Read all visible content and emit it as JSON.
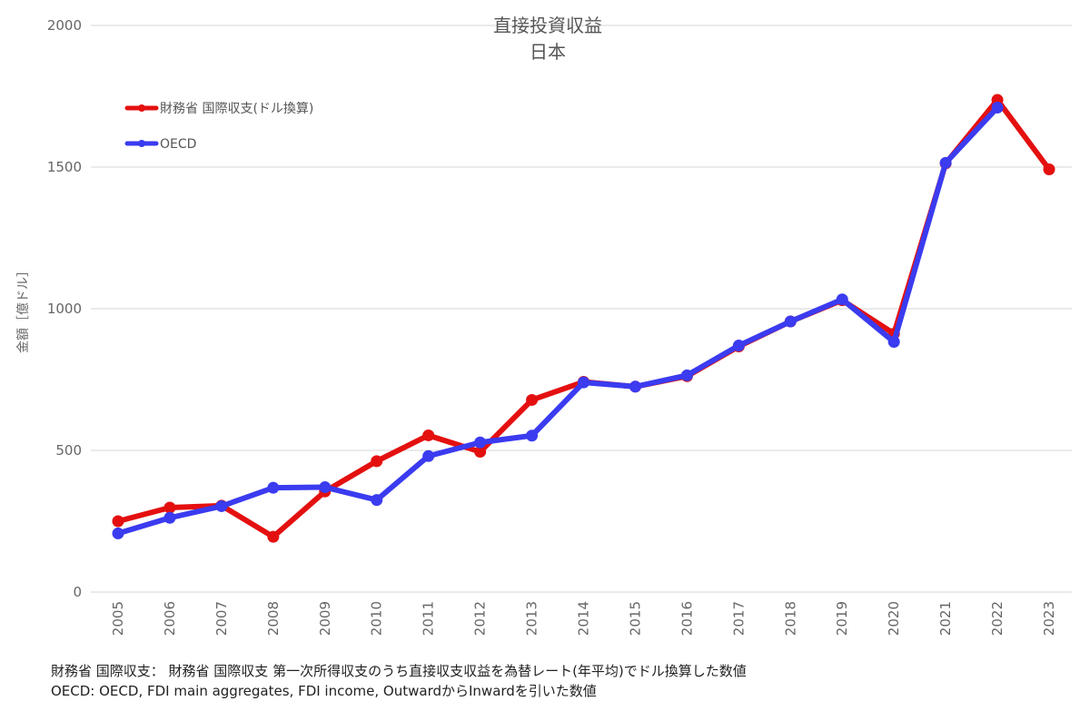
{
  "chart_data": {
    "type": "line",
    "title": "直接投資収益",
    "subtitle": "日本",
    "ylabel": "金額［億ドル］",
    "xlabel": "",
    "ylim": [
      0,
      2000
    ],
    "yticks": [
      0,
      500,
      1000,
      1500,
      2000
    ],
    "grid": true,
    "legend_position": "top-left",
    "categories": [
      "2005",
      "2006",
      "2007",
      "2008",
      "2009",
      "2010",
      "2011",
      "2012",
      "2013",
      "2014",
      "2015",
      "2016",
      "2017",
      "2018",
      "2019",
      "2020",
      "2021",
      "2022",
      "2023"
    ],
    "series": [
      {
        "name": "財務省 国際収支(ドル換算)",
        "color": "#e41010",
        "values": [
          250,
          298,
          305,
          195,
          355,
          462,
          553,
          495,
          678,
          742,
          725,
          762,
          867,
          955,
          1030,
          912,
          1513,
          1737,
          1492
        ]
      },
      {
        "name": "OECD",
        "color": "#3b3bf0",
        "values": [
          207,
          262,
          303,
          368,
          370,
          325,
          480,
          528,
          552,
          740,
          725,
          765,
          870,
          955,
          1033,
          883,
          1515,
          1710,
          null
        ]
      }
    ]
  },
  "footnotes": {
    "line1": "財務省 国際収支： 財務省 国際収支 第一次所得収支のうち直接収支収益を為替レート(年平均)でドル換算した数値",
    "line2": "OECD: OECD, FDI main aggregates, FDI income, OutwardからInwardを引いた数値"
  }
}
